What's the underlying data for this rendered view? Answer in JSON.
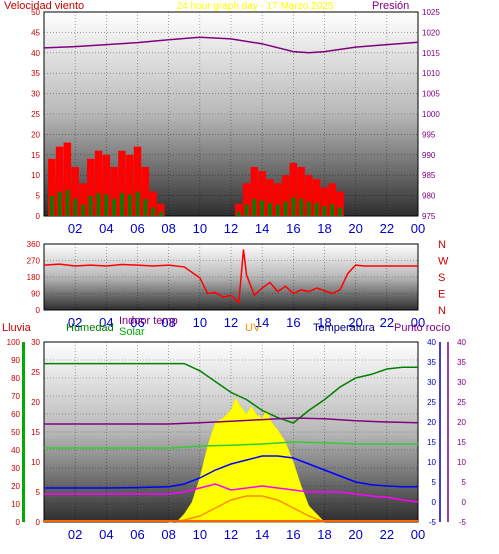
{
  "colors": {
    "wind": "#ff0000",
    "gust": "#0000cc",
    "wind_avg": "#008000",
    "pressure": "#800080",
    "direction": "#ff0000",
    "humidity": "#008000",
    "solar": "#ffff00",
    "solar_label": "#00aa00",
    "uv": "#ff8c00",
    "indoor_temp": "#800080",
    "temperature": "#0000ff",
    "dewpoint": "#ff00ff",
    "rain": "#00aa00",
    "axis_red": "#cc0000",
    "axis_blue": "#0000cc",
    "axis_purple": "#800080",
    "title": "#ffff00"
  },
  "chart_data": [
    {
      "type": "line",
      "title": "24 hour graph day - 17 Marzo 2025",
      "xlabel": "",
      "x_ticks": [
        "02",
        "04",
        "06",
        "08",
        "10",
        "12",
        "14",
        "16",
        "18",
        "20",
        "22",
        "00"
      ],
      "xlim": [
        0,
        24
      ],
      "grid": true,
      "y_left": {
        "label": "Velocidad viento",
        "ticks": [
          0,
          5,
          10,
          15,
          20,
          25,
          30,
          35,
          40,
          45,
          50
        ],
        "ylim": [
          0,
          50
        ]
      },
      "y_right": {
        "label": "Presión",
        "ticks": [
          975,
          980,
          985,
          990,
          995,
          1000,
          1005,
          1010,
          1015,
          1020,
          1025
        ],
        "ylim": [
          975,
          1025
        ]
      },
      "series": [
        {
          "name": "Velocidad viento",
          "axis": "left",
          "style": "bars",
          "x": [
            0.5,
            1.0,
            1.5,
            2.0,
            2.5,
            3.0,
            3.5,
            4.0,
            4.5,
            5.0,
            5.5,
            6.0,
            6.5,
            7.0,
            7.5,
            8.0,
            12.5,
            13.0,
            13.5,
            14.0,
            14.5,
            15.0,
            15.5,
            16.0,
            16.5,
            17.0,
            17.5,
            18.0,
            18.5,
            19.0
          ],
          "values": [
            14,
            17,
            18,
            12,
            8,
            14,
            16,
            15,
            12,
            16,
            15,
            17,
            12,
            6,
            3,
            0,
            3,
            8,
            12,
            11,
            9,
            8,
            10,
            13,
            12,
            10,
            9,
            7,
            8,
            6
          ]
        },
        {
          "name": "Presión",
          "axis": "right",
          "x": [
            0,
            2,
            4,
            6,
            8,
            10,
            12,
            14,
            16,
            17,
            18,
            20,
            22,
            24
          ],
          "values": [
            1016.2,
            1016.5,
            1017.0,
            1017.5,
            1018.2,
            1018.8,
            1018.4,
            1017.2,
            1015.3,
            1015.0,
            1015.3,
            1016.4,
            1017.0,
            1017.6
          ]
        }
      ]
    },
    {
      "type": "line",
      "title": "",
      "x_ticks": [
        "02",
        "04",
        "06",
        "08",
        "10",
        "12",
        "14",
        "16",
        "18",
        "20",
        "22",
        "00"
      ],
      "xlim": [
        0,
        24
      ],
      "grid": true,
      "y_left": {
        "label": "",
        "ticks": [
          0,
          90,
          180,
          270,
          360
        ],
        "ylim": [
          0,
          360
        ]
      },
      "y_right": {
        "label": "",
        "ticks": [
          "N",
          "W",
          "S",
          "E",
          "N"
        ]
      },
      "series": [
        {
          "name": "",
          "axis": "left",
          "x": [
            0,
            1,
            2,
            3,
            4,
            5,
            6,
            7,
            8,
            9,
            10,
            10.5,
            11,
            11.5,
            12,
            12.5,
            12.8,
            13,
            13.5,
            14,
            14.5,
            15,
            15.5,
            16,
            16.5,
            17,
            17.5,
            18,
            18.5,
            19,
            19.5,
            20,
            20.5,
            21,
            22,
            23,
            24
          ],
          "values": [
            245,
            250,
            240,
            245,
            240,
            248,
            245,
            240,
            245,
            235,
            175,
            90,
            95,
            70,
            80,
            40,
            330,
            190,
            80,
            120,
            150,
            100,
            130,
            90,
            110,
            100,
            120,
            105,
            90,
            110,
            200,
            245,
            240,
            240,
            240,
            240,
            240
          ]
        }
      ]
    },
    {
      "type": "line",
      "title": "",
      "x_ticks": [
        "02",
        "04",
        "06",
        "08",
        "10",
        "12",
        "14",
        "16",
        "18",
        "20",
        "22",
        "00"
      ],
      "xlim": [
        0,
        24
      ],
      "grid": true,
      "axes": [
        {
          "label": "Lluvia",
          "ticks": [
            0,
            10,
            20,
            30,
            40,
            50,
            60,
            70,
            80,
            90,
            100
          ],
          "ylim": [
            0,
            100
          ]
        },
        {
          "label": "Humedad",
          "ticks": [
            0,
            5,
            10,
            15,
            20,
            25,
            30
          ],
          "ylim": [
            0,
            30
          ]
        },
        {
          "label": "Temperatura",
          "ticks": [
            -5,
            0,
            5,
            10,
            15,
            20,
            25,
            30,
            35,
            40
          ],
          "ylim": [
            -5,
            40
          ]
        },
        {
          "label": "Punto rocío",
          "ticks": [
            -5,
            0,
            5,
            10,
            15,
            20,
            25,
            30,
            35,
            40
          ],
          "ylim": [
            -5,
            40
          ]
        }
      ],
      "legend_labels": [
        "Indoor temp",
        "Solar",
        "UV"
      ],
      "series": [
        {
          "name": "Humedad",
          "axis": "humidity_0_100",
          "x": [
            0,
            2,
            4,
            6,
            8,
            9,
            10,
            11,
            12,
            13,
            14,
            15,
            16,
            17,
            18,
            19,
            20,
            21,
            22,
            23,
            24
          ],
          "values": [
            88,
            88,
            88,
            88,
            88,
            88,
            84,
            78,
            72,
            68,
            62,
            58,
            55,
            62,
            68,
            75,
            80,
            82,
            85,
            86,
            86
          ]
        },
        {
          "name": "Indoor temp",
          "axis": "temp",
          "x": [
            0,
            4,
            8,
            10,
            12,
            14,
            16,
            18,
            20,
            22,
            24
          ],
          "values": [
            19.5,
            19.5,
            19.5,
            19.8,
            20.2,
            20.6,
            21,
            20.8,
            20.3,
            20,
            19.8
          ]
        },
        {
          "name": "Solar",
          "axis": "temp",
          "x": [
            0,
            4,
            8,
            9,
            10,
            12,
            14,
            16,
            18,
            20,
            22,
            24
          ],
          "values": [
            13.5,
            13.5,
            13.5,
            13.7,
            14,
            14.2,
            14.5,
            15,
            14.8,
            14.5,
            14.5,
            14.5
          ]
        },
        {
          "name": "Temperatura",
          "axis": "temp",
          "x": [
            0,
            2,
            4,
            6,
            8,
            9,
            10,
            11,
            12,
            13,
            14,
            15,
            16,
            17,
            18,
            19,
            20,
            21,
            22,
            23,
            24
          ],
          "values": [
            3.5,
            3.5,
            3.5,
            3.6,
            3.8,
            4.5,
            6,
            8,
            9.5,
            10.5,
            11.5,
            11.5,
            11,
            9.5,
            8,
            6.5,
            5,
            4.3,
            4,
            3.8,
            3.8
          ]
        },
        {
          "name": "Punto rocío",
          "axis": "temp",
          "x": [
            0,
            2,
            4,
            6,
            8,
            9,
            10,
            11,
            12,
            13,
            14,
            15,
            16,
            17,
            18,
            19,
            20,
            21,
            22,
            23,
            24
          ],
          "values": [
            2,
            2,
            2,
            2,
            2,
            2.5,
            3.5,
            4.5,
            3,
            3.5,
            4,
            3.5,
            3,
            2.5,
            2.5,
            2.5,
            2,
            1.5,
            1.2,
            0.5,
            0
          ]
        },
        {
          "name": "UV",
          "axis": "temp",
          "x": [
            8,
            9,
            10,
            11,
            12,
            13,
            14,
            15,
            16,
            17,
            18
          ],
          "values": [
            -5,
            -4.5,
            -3.5,
            -1.5,
            0.5,
            1.5,
            1.5,
            0.5,
            -1.5,
            -3.5,
            -5
          ]
        },
        {
          "name": "Solar radiation",
          "axis": "temp",
          "style": "filled",
          "x": [
            8.5,
            9,
            9.5,
            10,
            10.5,
            11,
            11.5,
            12,
            12.3,
            12.6,
            13,
            13.3,
            13.6,
            14,
            14.3,
            14.6,
            15,
            15.5,
            16,
            16.5,
            17,
            17.5,
            18
          ],
          "values": [
            -5,
            -3,
            0,
            6,
            14,
            20,
            21,
            23,
            26,
            24,
            22,
            24,
            22,
            21,
            23,
            20,
            18,
            15,
            10,
            4,
            -1,
            -3,
            -5
          ]
        },
        {
          "name": "Lluvia",
          "axis": "rain",
          "x": [
            0,
            24
          ],
          "values": [
            0,
            0
          ]
        }
      ]
    }
  ]
}
